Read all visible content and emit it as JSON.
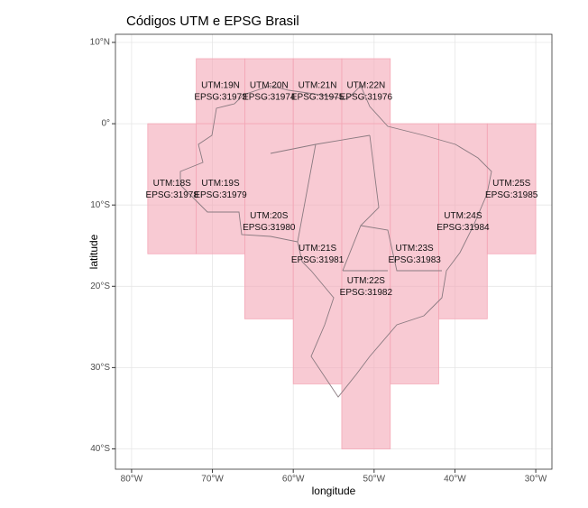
{
  "chart_data": {
    "type": "map",
    "title": "Códigos UTM e EPSG Brasil",
    "x_label": "longitude",
    "y_label": "latitude",
    "xlim": [
      -82,
      -28
    ],
    "ylim": [
      -42.5,
      11
    ],
    "xticks": [
      {
        "value": -80,
        "label": "80°W"
      },
      {
        "value": -70,
        "label": "70°W"
      },
      {
        "value": -60,
        "label": "60°W"
      },
      {
        "value": -50,
        "label": "50°W"
      },
      {
        "value": -40,
        "label": "40°W"
      },
      {
        "value": -30,
        "label": "30°W"
      }
    ],
    "yticks": [
      {
        "value": 10,
        "label": "10°N"
      },
      {
        "value": 0,
        "label": "0°"
      },
      {
        "value": -10,
        "label": "10°S"
      },
      {
        "value": -20,
        "label": "20°S"
      },
      {
        "value": -30,
        "label": "30°S"
      },
      {
        "value": -40,
        "label": "40°S"
      }
    ],
    "grid": true,
    "color": "#f4a7b6",
    "zones": [
      {
        "utm": "UTM:18S",
        "epsg": "EPSG:31978",
        "lon": [
          -78,
          -72
        ],
        "lat": [
          -16,
          0
        ]
      },
      {
        "utm": "UTM:19N",
        "epsg": "EPSG:31973",
        "lon": [
          -72,
          -66
        ],
        "lat": [
          0,
          8
        ]
      },
      {
        "utm": "UTM:19S",
        "epsg": "EPSG:31979",
        "lon": [
          -72,
          -66
        ],
        "lat": [
          -16,
          0
        ]
      },
      {
        "utm": "UTM:20N",
        "epsg": "EPSG:31974",
        "lon": [
          -66,
          -60
        ],
        "lat": [
          0,
          8
        ]
      },
      {
        "utm": "UTM:20S",
        "epsg": "EPSG:31980",
        "lon": [
          -66,
          -60
        ],
        "lat": [
          -24,
          0
        ]
      },
      {
        "utm": "UTM:21N",
        "epsg": "EPSG:31975",
        "lon": [
          -60,
          -54
        ],
        "lat": [
          0,
          8
        ]
      },
      {
        "utm": "UTM:21S",
        "epsg": "EPSG:31981",
        "lon": [
          -60,
          -54
        ],
        "lat": [
          -32,
          0
        ]
      },
      {
        "utm": "UTM:22N",
        "epsg": "EPSG:31976",
        "lon": [
          -54,
          -48
        ],
        "lat": [
          0,
          8
        ]
      },
      {
        "utm": "UTM:22S",
        "epsg": "EPSG:31982",
        "lon": [
          -54,
          -48
        ],
        "lat": [
          -40,
          0
        ]
      },
      {
        "utm": "UTM:23S",
        "epsg": "EPSG:31983",
        "lon": [
          -48,
          -42
        ],
        "lat": [
          -32,
          0
        ]
      },
      {
        "utm": "UTM:24S",
        "epsg": "EPSG:31984",
        "lon": [
          -42,
          -36
        ],
        "lat": [
          -24,
          0
        ]
      },
      {
        "utm": "UTM:25S",
        "epsg": "EPSG:31985",
        "lon": [
          -36,
          -30
        ],
        "lat": [
          -16,
          0
        ]
      }
    ]
  }
}
